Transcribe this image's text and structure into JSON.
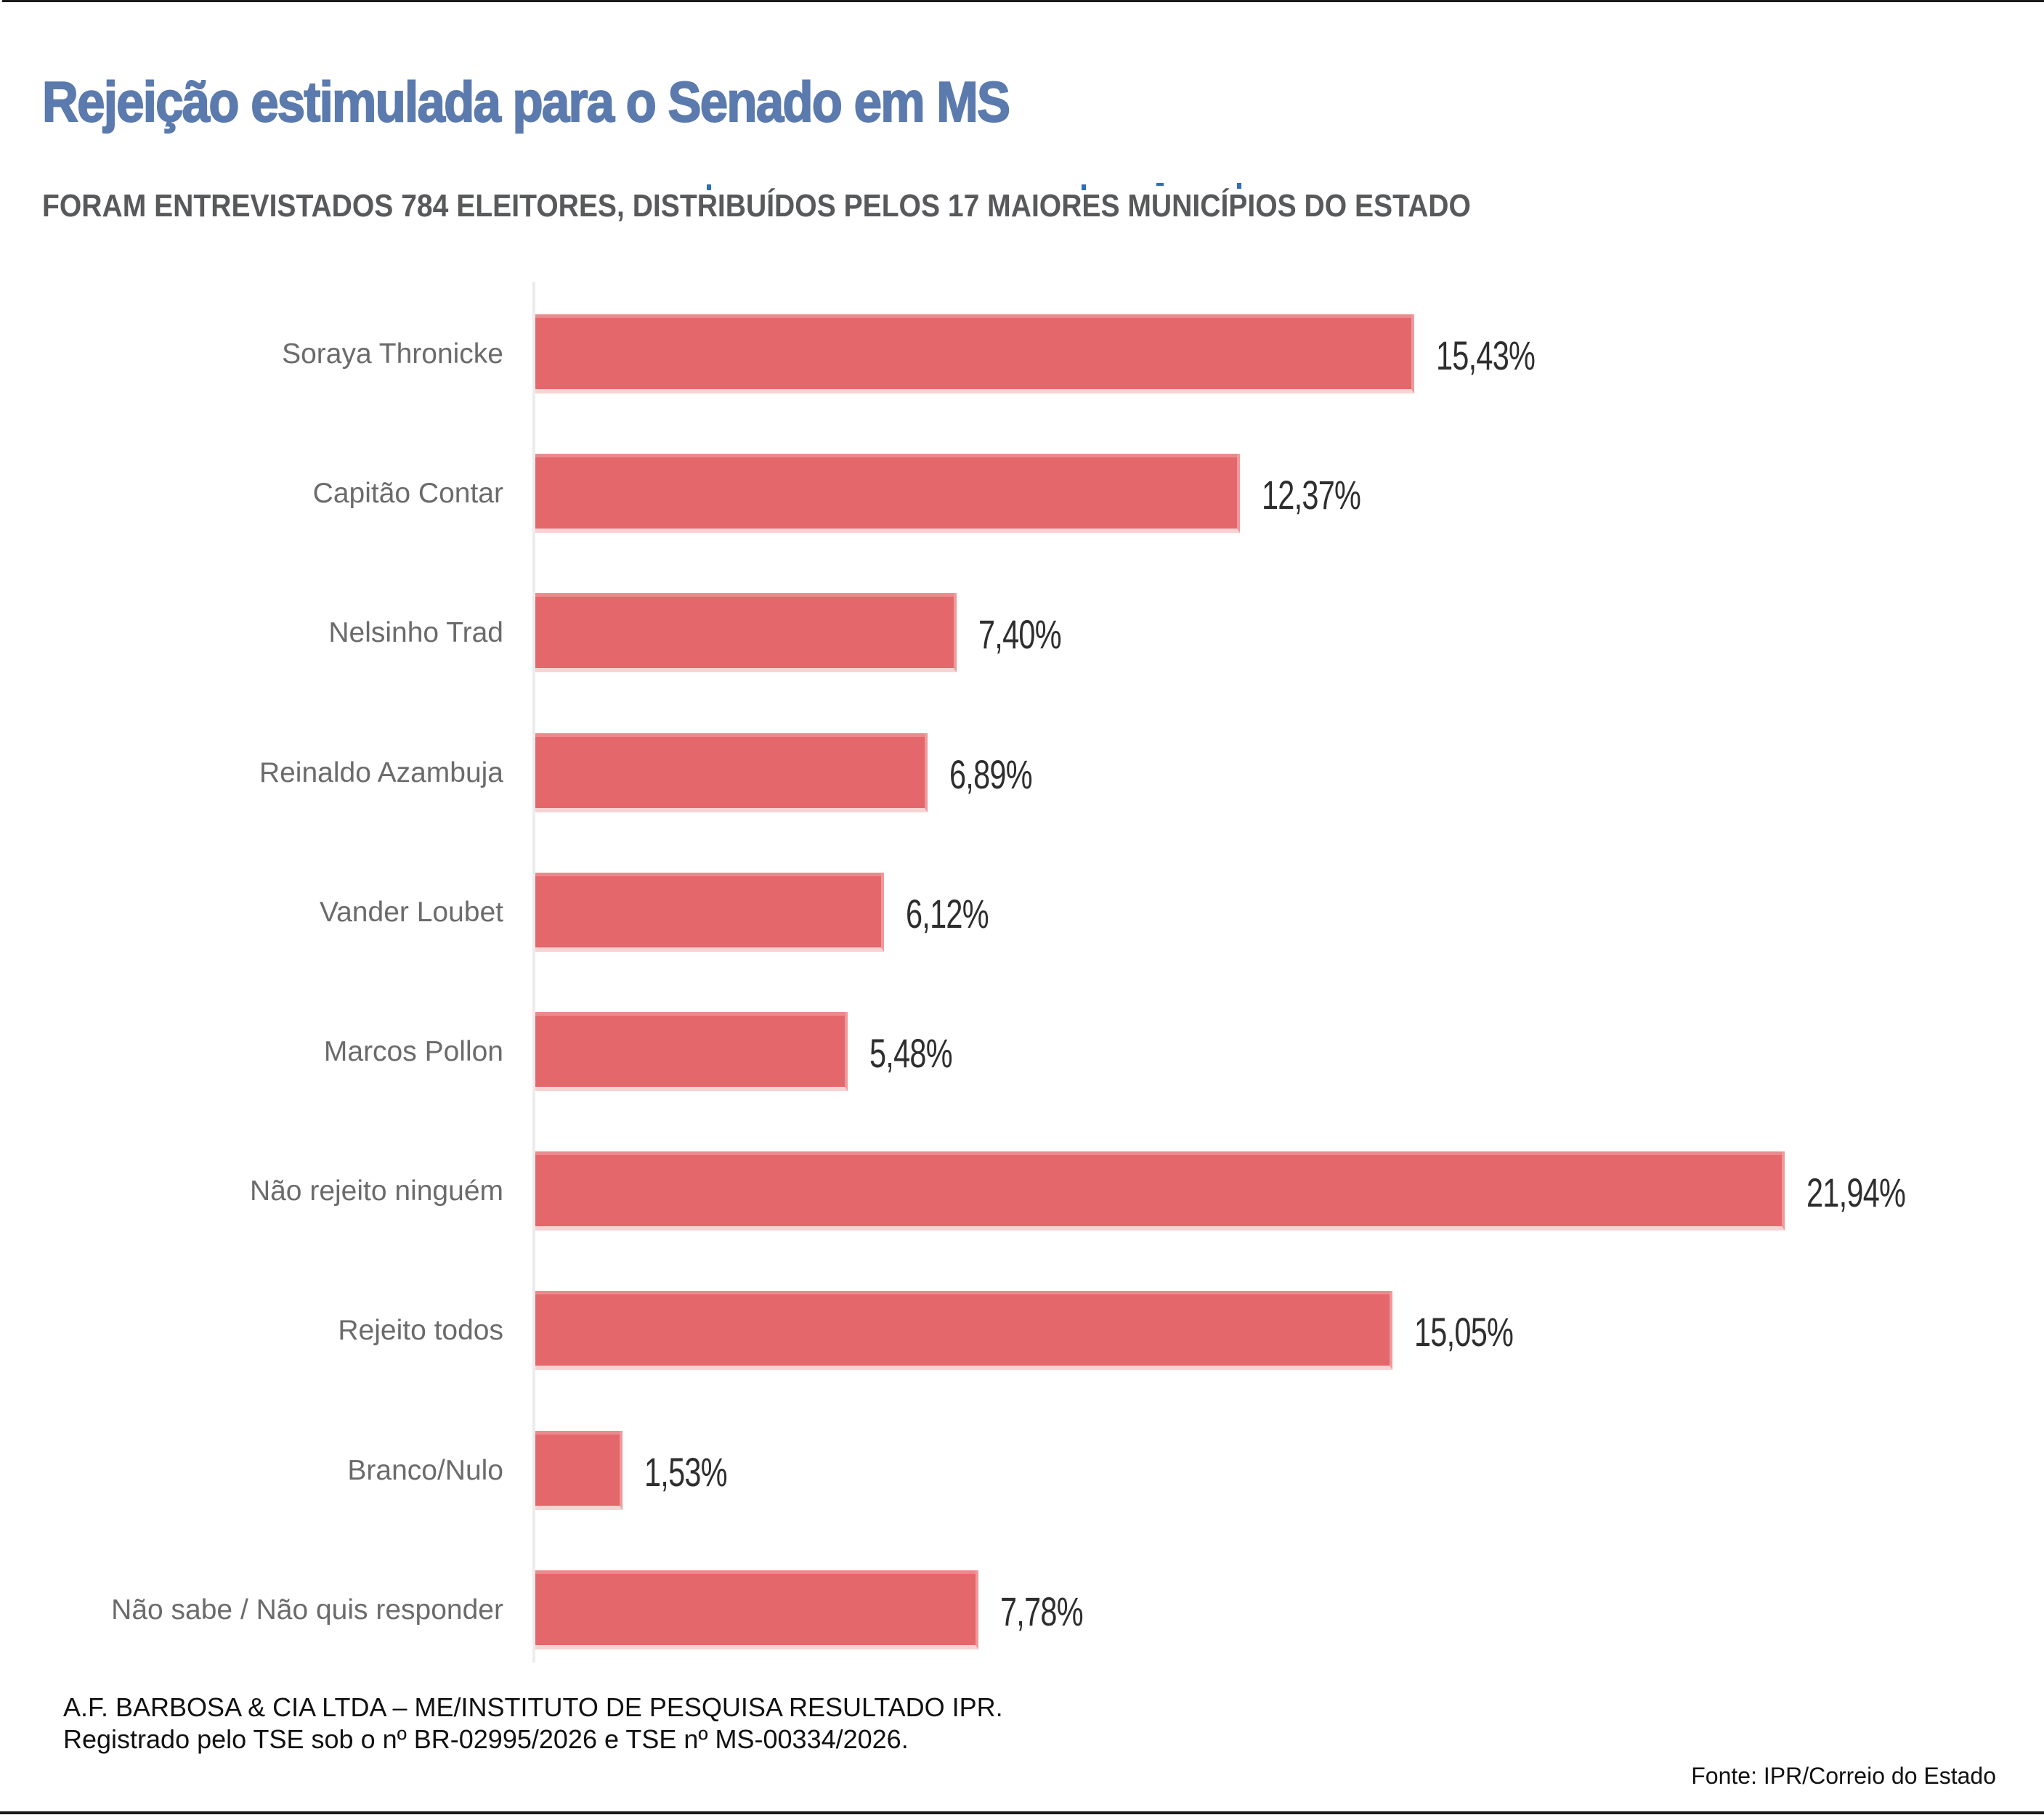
{
  "header": {
    "title": "Rejeição estimulada para o Senado em MS",
    "subtitle": "FORAM ENTREVISTADOS 784 ELEITORES, DISTRIBUÍDOS PELOS 17 MAIORES MUNICÍPIOS DO ESTADO"
  },
  "colors": {
    "title": "#5b7aad",
    "bar": "#e4676b",
    "subtitle": "#58595b"
  },
  "chart_data": {
    "type": "bar",
    "orientation": "horizontal",
    "title": "Rejeição estimulada para o Senado em MS",
    "subtitle": "FORAM ENTREVISTADOS 784 ELEITORES, DISTRIBUÍDOS PELOS 17 MAIORES MUNICÍPIOS DO ESTADO",
    "xlabel": "",
    "ylabel": "",
    "xlim": [
      0,
      25
    ],
    "grid": false,
    "categories": [
      "Soraya Thronicke",
      "Capitão Contar",
      "Nelsinho Trad",
      "Reinaldo Azambuja",
      "Vander Loubet",
      "Marcos Pollon",
      "Não rejeito ninguém",
      "Rejeito todos",
      "Branco/Nulo",
      "Não sabe / Não quis responder"
    ],
    "values": [
      15.43,
      12.37,
      7.4,
      6.89,
      6.12,
      5.48,
      21.94,
      15.05,
      1.53,
      7.78
    ],
    "value_labels": [
      "15,43%",
      "12,37%",
      "7,40%",
      "6,89%",
      "6,12%",
      "5,48%",
      "21,94%",
      "15,05%",
      "1,53%",
      "7,78%"
    ],
    "unit": "%"
  },
  "footer": {
    "note_line1": "A.F. BARBOSA & CIA LTDA – ME/INSTITUTO DE PESQUISA RESULTADO IPR.",
    "note_line2": "Registrado pelo TSE sob o nº BR-02995/2026 e TSE nº MS-00334/2026.",
    "source": "Fonte: IPR/Correio do Estado"
  }
}
